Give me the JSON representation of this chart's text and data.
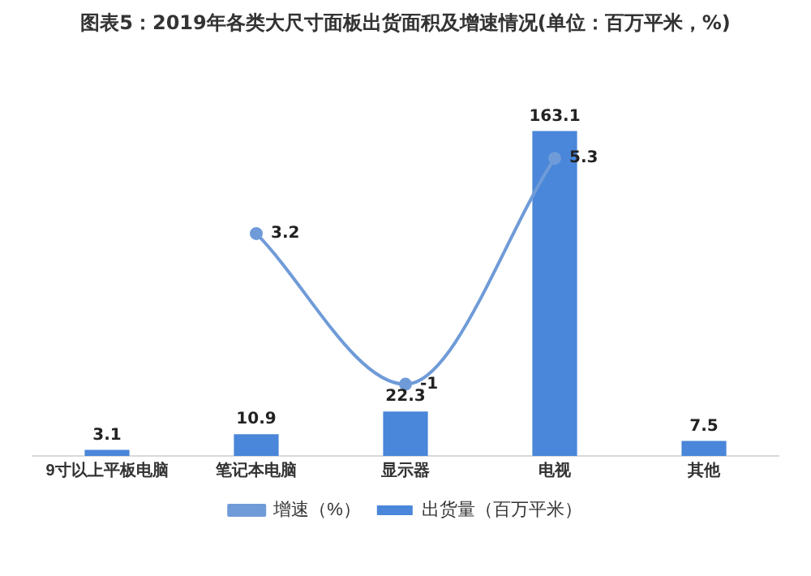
{
  "chart_data": {
    "type": "bar",
    "title": "图表5：2019年各类大尺寸面板出货面积及增速情况(单位：百万平米，%)",
    "categories": [
      "9寸以上平板电脑",
      "笔记本电脑",
      "显示器",
      "电视",
      "其他"
    ],
    "series": [
      {
        "name": "出货量（百万平米）",
        "color": "#4a86d9",
        "values": [
          3.1,
          10.9,
          22.3,
          163.1,
          7.5
        ]
      },
      {
        "name": "增速（%）",
        "type": "line",
        "axis": "y2",
        "color": "#6f9bd8",
        "values": [
          null,
          3.2,
          -1,
          5.3,
          null
        ],
        "value_labels": [
          null,
          "3.2",
          "-1",
          "5.3",
          null
        ]
      }
    ],
    "data_labels": true,
    "tick_labels": "x",
    "legend": "bottom",
    "marker": "circle"
  }
}
